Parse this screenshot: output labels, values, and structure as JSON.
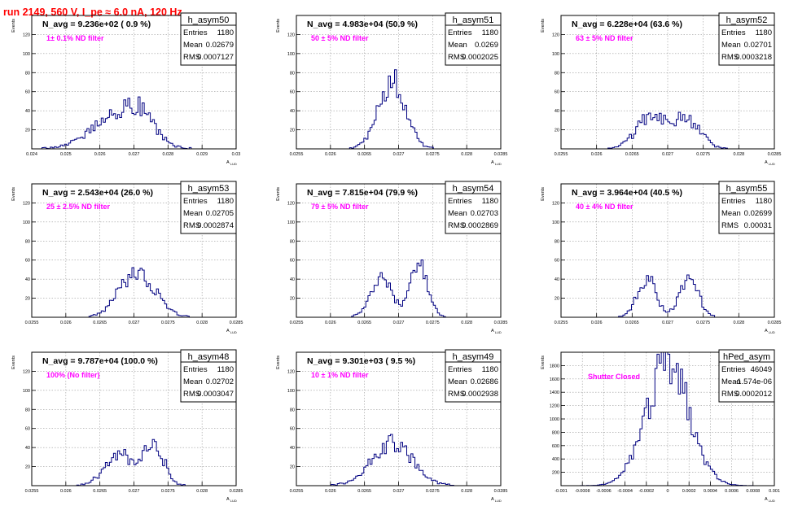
{
  "header": {
    "title": "run 2149,    560 V, I_pe ≈ 6.0 nA, 120 Hz",
    "title_color": "#ff0000"
  },
  "colors": {
    "histogram_line": "#000080",
    "annotation": "#ff00ff",
    "grid": "#999999",
    "frame": "#000000"
  },
  "chart_data": [
    {
      "type": "histogram",
      "name": "h_asym50",
      "n_avg_label": "N_avg = 9.236e+02 ( 0.9 %)",
      "filter_label": "1± 0.1% ND filter",
      "stats": {
        "entries": "1180",
        "mean": "0.02679",
        "rms": "0.0007127"
      },
      "ylabel": "Events",
      "xlabel": "A",
      "xlim": [
        0.024,
        0.03
      ],
      "ylim": [
        0,
        140
      ],
      "xticks": [
        "0.024",
        "0.025",
        "0.026",
        "0.027",
        "0.028",
        "0.029",
        "0.03"
      ],
      "yticks": [
        "20",
        "40",
        "60",
        "80",
        "100",
        "120"
      ],
      "shape": [
        [
          0.0265,
          0.00075,
          35
        ],
        [
          0.0272,
          0.0004,
          20
        ]
      ]
    },
    {
      "type": "histogram",
      "name": "h_asym51",
      "n_avg_label": "N_avg = 4.983e+04 (50.9 %)",
      "filter_label": "50 ± 5% ND filter",
      "stats": {
        "entries": "1180",
        "mean": "0.0269",
        "rms": "0.0002025"
      },
      "ylabel": "Events",
      "xlabel": "A",
      "xlim": [
        0.0255,
        0.0285
      ],
      "ylim": [
        0,
        140
      ],
      "xticks": [
        "0.0255",
        "0.026",
        "0.0265",
        "0.027",
        "0.0275",
        "0.028",
        "0.0285"
      ],
      "yticks": [
        "20",
        "40",
        "60",
        "80",
        "100",
        "120"
      ],
      "shape": [
        [
          0.0269,
          0.0002,
          72
        ]
      ]
    },
    {
      "type": "histogram",
      "name": "h_asym52",
      "n_avg_label": "N_avg = 6.228e+04 (63.6 %)",
      "filter_label": "63 ± 5% ND filter",
      "stats": {
        "entries": "1180",
        "mean": "0.02701",
        "rms": "0.0003218"
      },
      "ylabel": "Events",
      "xlabel": "A",
      "xlim": [
        0.0255,
        0.0285
      ],
      "ylim": [
        0,
        140
      ],
      "xticks": [
        "0.0255",
        "0.026",
        "0.0265",
        "0.027",
        "0.0275",
        "0.028",
        "0.0285"
      ],
      "yticks": [
        "20",
        "40",
        "60",
        "80",
        "100",
        "120"
      ],
      "shape": [
        [
          0.02675,
          0.0002,
          32
        ],
        [
          0.02725,
          0.0002,
          32
        ]
      ]
    },
    {
      "type": "histogram",
      "name": "h_asym53",
      "n_avg_label": "N_avg = 2.543e+04 (26.0 %)",
      "filter_label": "25 ± 2.5% ND filter",
      "stats": {
        "entries": "1180",
        "mean": "0.02705",
        "rms": "0.0002874"
      },
      "ylabel": "Events",
      "xlabel": "A",
      "xlim": [
        0.0255,
        0.0285
      ],
      "ylim": [
        0,
        140
      ],
      "xticks": [
        "0.0255",
        "0.026",
        "0.0265",
        "0.027",
        "0.0275",
        "0.028",
        "0.0285"
      ],
      "yticks": [
        "20",
        "40",
        "60",
        "80",
        "100",
        "120"
      ],
      "shape": [
        [
          0.0269,
          0.0002,
          30
        ],
        [
          0.0272,
          0.00022,
          28
        ]
      ]
    },
    {
      "type": "histogram",
      "name": "h_asym54",
      "n_avg_label": "N_avg = 7.815e+04 (79.9 %)",
      "filter_label": "79 ± 5% ND filter",
      "stats": {
        "entries": "1180",
        "mean": "0.02703",
        "rms": "0.0002869"
      },
      "ylabel": "Events",
      "xlabel": "A",
      "xlim": [
        0.0255,
        0.0285
      ],
      "ylim": [
        0,
        140
      ],
      "xticks": [
        "0.0255",
        "0.026",
        "0.0265",
        "0.027",
        "0.0275",
        "0.028",
        "0.0285"
      ],
      "yticks": [
        "20",
        "40",
        "60",
        "80",
        "100",
        "120"
      ],
      "shape": [
        [
          0.02675,
          0.00015,
          42
        ],
        [
          0.0273,
          0.00013,
          52
        ]
      ]
    },
    {
      "type": "histogram",
      "name": "h_asym55",
      "n_avg_label": "N_avg = 3.964e+04 (40.5 %)",
      "filter_label": "40 ± 4% ND filter",
      "stats": {
        "entries": "1180",
        "mean": "0.02699",
        "rms": "0.00031"
      },
      "ylabel": "Events",
      "xlabel": "A",
      "xlim": [
        0.0255,
        0.0285
      ],
      "ylim": [
        0,
        140
      ],
      "xticks": [
        "0.0255",
        "0.026",
        "0.0265",
        "0.027",
        "0.0275",
        "0.028",
        "0.0285"
      ],
      "yticks": [
        "20",
        "40",
        "60",
        "80",
        "100",
        "120"
      ],
      "shape": [
        [
          0.0267,
          0.00013,
          42
        ],
        [
          0.0273,
          0.00013,
          42
        ]
      ]
    },
    {
      "type": "histogram",
      "name": "h_asym48",
      "n_avg_label": "N_avg = 9.787e+04 (100.0 %)",
      "filter_label": "100% (No filter)",
      "stats": {
        "entries": "1180",
        "mean": "0.02702",
        "rms": "0.0003047"
      },
      "ylabel": "Events",
      "xlabel": "A",
      "xlim": [
        0.0255,
        0.0285
      ],
      "ylim": [
        0,
        140
      ],
      "xticks": [
        "0.0255",
        "0.026",
        "0.0265",
        "0.027",
        "0.0275",
        "0.028",
        "0.0285"
      ],
      "yticks": [
        "20",
        "40",
        "60",
        "80",
        "100",
        "120"
      ],
      "shape": [
        [
          0.0268,
          0.00022,
          32
        ],
        [
          0.0273,
          0.00015,
          40
        ]
      ]
    },
    {
      "type": "histogram",
      "name": "h_asym49",
      "n_avg_label": "N_avg = 9.301e+03 ( 9.5 %)",
      "filter_label": "10 ± 1% ND filter",
      "stats": {
        "entries": "1180",
        "mean": "0.02686",
        "rms": "0.0002938"
      },
      "ylabel": "Events",
      "xlabel": "A",
      "xlim": [
        0.0255,
        0.0285
      ],
      "ylim": [
        0,
        140
      ],
      "xticks": [
        "0.0255",
        "0.026",
        "0.0265",
        "0.027",
        "0.0275",
        "0.028",
        "0.0285"
      ],
      "yticks": [
        "20",
        "40",
        "60",
        "80",
        "100",
        "120"
      ],
      "shape": [
        [
          0.0269,
          0.0003,
          45
        ]
      ]
    },
    {
      "type": "histogram",
      "name": "hPed_asym",
      "n_avg_label": "",
      "filter_label": "Shutter Closed",
      "stats": {
        "entries": "46049",
        "mean": "-1.574e-06",
        "rms": "0.0002012"
      },
      "ylabel": "Events",
      "xlabel": "A",
      "xlim": [
        -0.001,
        0.001
      ],
      "ylim": [
        0,
        2000
      ],
      "xticks": [
        "-0.001",
        "-0.0008",
        "-0.0006",
        "-0.0004",
        "-0.0002",
        "0",
        "0.0002",
        "0.0004",
        "0.0006",
        "0.0008",
        "0.001"
      ],
      "yticks": [
        "200",
        "400",
        "600",
        "800",
        "1000",
        "1200",
        "1400",
        "1600",
        "1800"
      ],
      "shape": [
        [
          0.0,
          0.0002,
          1830
        ]
      ]
    }
  ]
}
